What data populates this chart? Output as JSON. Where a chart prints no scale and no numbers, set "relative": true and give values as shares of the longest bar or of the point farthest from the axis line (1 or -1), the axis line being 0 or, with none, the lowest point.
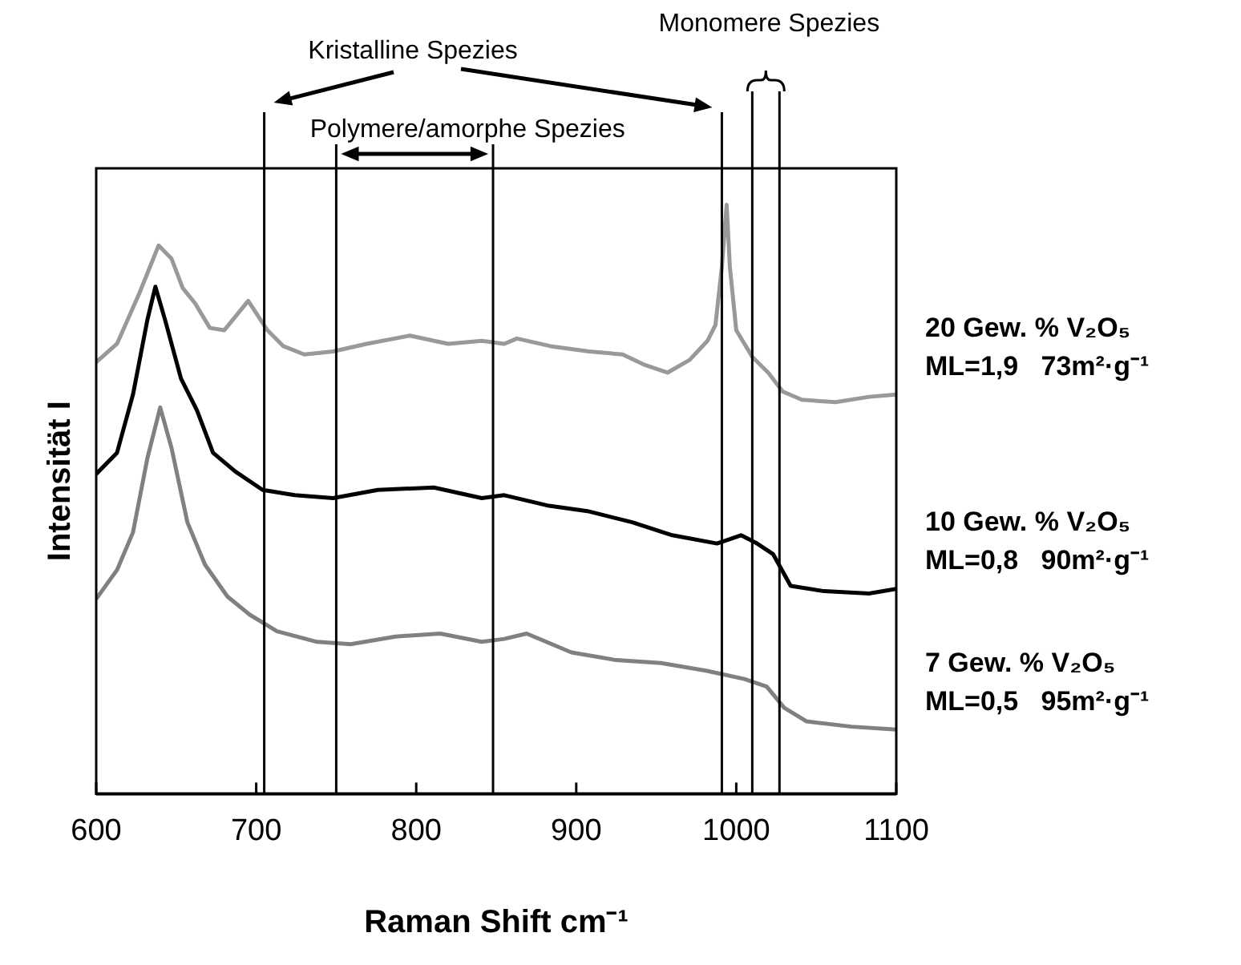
{
  "chart_data": {
    "type": "line",
    "relative": true,
    "xlabel": "Raman Shift cm⁻¹",
    "ylabel": "Intensität I",
    "legend": false,
    "grid": false,
    "marker": "none",
    "line_style": "solid",
    "xlim": [
      600,
      1100
    ],
    "xticks": [
      600,
      700,
      800,
      900,
      1000,
      1100
    ],
    "ref_lines": [
      {
        "axis": "x",
        "value": 705,
        "color": "#000000"
      },
      {
        "axis": "x",
        "value": 750,
        "color": "#000000"
      },
      {
        "axis": "x",
        "value": 848,
        "color": "#000000"
      },
      {
        "axis": "x",
        "value": 991,
        "color": "#000000"
      },
      {
        "axis": "x",
        "value": 1010,
        "color": "#000000"
      },
      {
        "axis": "x",
        "value": 1027,
        "color": "#000000"
      }
    ],
    "annotations": [
      "Kristalline Spezies",
      "Polymere/amorphe Spezies",
      "Monomere Spezies"
    ],
    "series": [
      {
        "name": "20 Gew. % V₂O₅\nML=1,9   73m²·g⁻¹",
        "color": "#999999",
        "x": [
          600,
          613,
          627,
          639,
          647,
          654,
          662,
          671,
          680,
          695,
          707,
          717,
          730,
          748,
          769,
          796,
          820,
          841,
          855,
          863,
          884,
          908,
          929,
          943,
          957,
          971,
          982,
          987,
          991,
          994,
          996,
          1000,
          1010,
          1020,
          1029,
          1041,
          1062,
          1083,
          1100
        ],
        "values": [
          0.733,
          0.764,
          0.85,
          0.931,
          0.909,
          0.859,
          0.832,
          0.791,
          0.787,
          0.837,
          0.787,
          0.76,
          0.746,
          0.751,
          0.764,
          0.778,
          0.764,
          0.769,
          0.764,
          0.773,
          0.76,
          0.751,
          0.746,
          0.728,
          0.715,
          0.737,
          0.769,
          0.796,
          0.895,
          1,
          0.895,
          0.787,
          0.742,
          0.715,
          0.683,
          0.669,
          0.665,
          0.674,
          0.678
        ]
      },
      {
        "name": "10 Gew. % V₂O₅\nML=0,8   90m²·g⁻¹",
        "color": "#000000",
        "x": [
          600,
          613,
          623,
          632,
          637,
          643,
          653,
          663,
          673,
          687,
          704,
          724,
          748,
          776,
          811,
          841,
          855,
          883,
          907,
          935,
          960,
          988,
          1003,
          1013,
          1023,
          1034,
          1055,
          1083,
          1100
        ],
        "values": [
          0.543,
          0.579,
          0.678,
          0.805,
          0.861,
          0.805,
          0.705,
          0.651,
          0.579,
          0.547,
          0.516,
          0.507,
          0.502,
          0.516,
          0.52,
          0.502,
          0.507,
          0.489,
          0.48,
          0.461,
          0.439,
          0.425,
          0.439,
          0.425,
          0.407,
          0.353,
          0.344,
          0.34,
          0.348
        ]
      },
      {
        "name": "7 Gew. % V₂O₅\nML=0,5   95m²·g⁻¹",
        "color": "#808080",
        "x": [
          600,
          613,
          623,
          632,
          640,
          647,
          657,
          668,
          682,
          696,
          713,
          738,
          759,
          787,
          815,
          841,
          855,
          869,
          897,
          925,
          953,
          981,
          1005,
          1019,
          1030,
          1044,
          1072,
          1100
        ],
        "values": [
          0.331,
          0.38,
          0.444,
          0.57,
          0.656,
          0.588,
          0.461,
          0.389,
          0.335,
          0.304,
          0.276,
          0.258,
          0.254,
          0.267,
          0.272,
          0.258,
          0.263,
          0.272,
          0.24,
          0.227,
          0.222,
          0.209,
          0.195,
          0.182,
          0.146,
          0.123,
          0.114,
          0.109
        ]
      }
    ]
  }
}
